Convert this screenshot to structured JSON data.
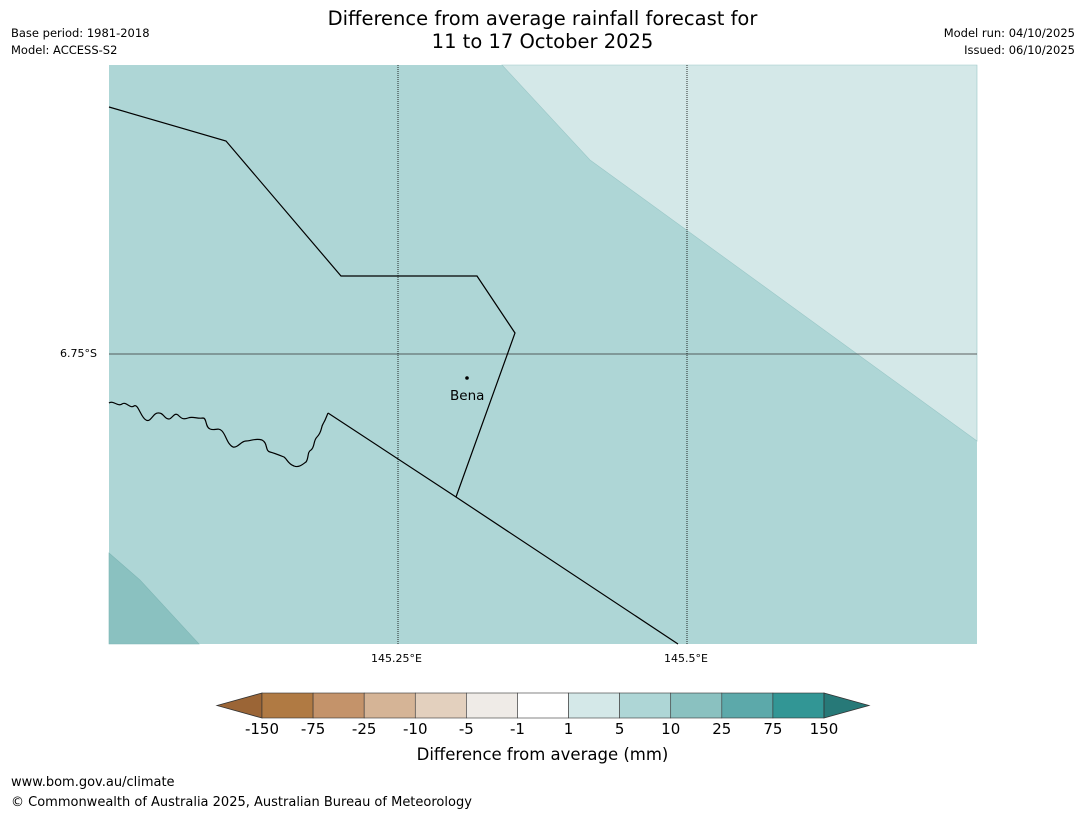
{
  "title_line1": "Difference from average rainfall forecast for",
  "title_line2": "11 to 17 October 2025",
  "meta_left": {
    "base_period": "Base period: 1981-2018",
    "model": "Model: ACCESS-S2"
  },
  "meta_right": {
    "model_run": "Model run: 04/10/2025",
    "issued": "Issued: 06/10/2025"
  },
  "map": {
    "lat_label": "6.75°S",
    "lon_labels": [
      "145.25°E",
      "145.5°E"
    ],
    "place": "Bena",
    "colors": {
      "light": "#d4e8e8",
      "mid": "#aed6d6",
      "dark": "#8ac1c0"
    }
  },
  "colorbar": {
    "ticks": [
      "-150",
      "-75",
      "-25",
      "-10",
      "-5",
      "-1",
      "1",
      "5",
      "10",
      "25",
      "75",
      "150"
    ],
    "colors": [
      "#9b6536",
      "#b07a43",
      "#c4936a",
      "#d5b496",
      "#e3d0be",
      "#efebe7",
      "#ffffff",
      "#d4e8e8",
      "#aed6d6",
      "#8ac1c0",
      "#5ca9aa",
      "#329695",
      "#277978"
    ],
    "label": "Difference from average (mm)"
  },
  "footer": {
    "url": "www.bom.gov.au/climate",
    "copyright": "© Commonwealth of Australia 2025, Australian Bureau of Meteorology"
  }
}
